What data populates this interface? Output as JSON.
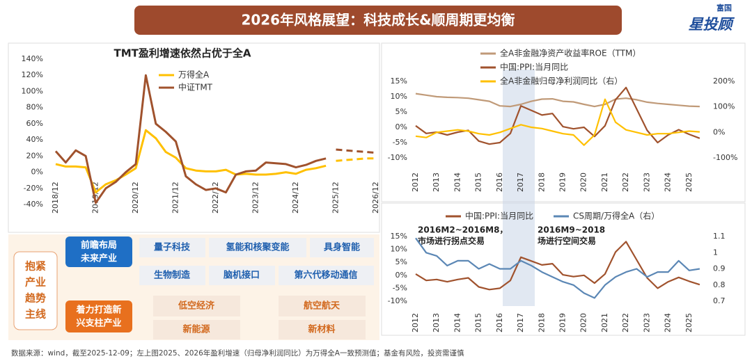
{
  "header": {
    "title": "2026年风格展望：科技成长&顺周期更均衡",
    "logo_top": "富国",
    "logo_main": "星投顾"
  },
  "panel": {
    "theme": [
      "抱紧",
      "产业",
      "趋势",
      "主线"
    ],
    "groups": [
      {
        "label": [
          "前瞻布局",
          "未来产业"
        ],
        "items": [
          "量子科技",
          "氢能和核聚变能",
          "具身智能",
          "生物制造",
          "脑机接口",
          "第六代移动通信"
        ]
      },
      {
        "label": [
          "着力打造新",
          "兴支柱产业"
        ],
        "items": [
          "低空经济",
          "航空航天",
          "新能源",
          "新材料"
        ]
      }
    ]
  },
  "footer": "数据来源：wind，截至2025-12-09；左上图2025、2026年盈利增速（归母净利润同比）为万得全A一致预测值；基金有风险，投资需谨慎",
  "chart_data": [
    {
      "type": "line",
      "title": "TMT盈利增速依然占优于全A",
      "dash_from_index": 28,
      "categories": [
        "2018/12",
        null,
        null,
        null,
        "2019/12",
        null,
        null,
        null,
        "2020/12",
        null,
        null,
        null,
        "2021/12",
        null,
        null,
        null,
        "2022/12",
        null,
        null,
        null,
        "2023/12",
        null,
        null,
        null,
        "2024/12",
        null,
        null,
        null,
        "2025/12",
        null,
        null,
        null,
        "2026/12"
      ],
      "series": [
        {
          "name": "万得全A",
          "color": "#ffc000",
          "values": [
            10,
            7,
            7,
            6,
            -25,
            -15,
            -10,
            -3,
            5,
            52,
            42,
            25,
            18,
            5,
            2,
            1,
            1,
            3,
            -3,
            -2,
            -3,
            -3,
            -2,
            0,
            -2,
            3,
            5,
            8,
            14,
            15,
            16,
            17,
            17
          ]
        },
        {
          "name": "中证TMT",
          "color": "#a0522d",
          "values": [
            26,
            12,
            27,
            20,
            -38,
            -20,
            -12,
            0,
            10,
            120,
            60,
            50,
            38,
            -5,
            -15,
            -22,
            -20,
            -25,
            -3,
            1,
            2,
            12,
            11,
            10,
            6,
            9,
            14,
            17,
            28,
            27,
            26,
            25,
            24
          ]
        }
      ],
      "ylim": [
        -40,
        140
      ],
      "yticks": [
        {
          "value": 140,
          "label": "140%"
        },
        {
          "value": 120,
          "label": "120%"
        },
        {
          "value": 100,
          "label": "100%"
        },
        {
          "value": 80,
          "label": "80%"
        },
        {
          "value": 60,
          "label": "60%"
        },
        {
          "value": 40,
          "label": "40%"
        },
        {
          "value": 20,
          "label": "20%"
        },
        {
          "value": 0,
          "label": "0%"
        },
        {
          "value": -20,
          "label": "-20%"
        },
        {
          "value": -40,
          "label": "-40%"
        }
      ],
      "grid": false
    },
    {
      "type": "line",
      "x": [
        2012,
        2012.5,
        2013,
        2013.5,
        2014,
        2014.5,
        2015,
        2015.5,
        2016,
        2016.5,
        2017,
        2017.5,
        2018,
        2018.5,
        2019,
        2019.5,
        2020,
        2020.5,
        2021,
        2021.5,
        2022,
        2022.5,
        2023,
        2023.5,
        2024,
        2024.5,
        2025,
        2025.5
      ],
      "series": [
        {
          "name": "全A非金融净资产收益率ROE（TTM）",
          "color": "#c09a78",
          "values": [
            11,
            10.5,
            10,
            9.8,
            9.7,
            9.5,
            9,
            8.5,
            7,
            6.8,
            7.5,
            8.5,
            9.2,
            9.3,
            8.5,
            8.3,
            7.5,
            6.8,
            7.5,
            9.2,
            9.5,
            9,
            8.2,
            7.8,
            7.5,
            7.2,
            6.9,
            6.8
          ]
        },
        {
          "name": "中国:PPI:当月同比",
          "color": "#a0522d",
          "values": [
            0.5,
            -2,
            -1.6,
            -2.5,
            -1.6,
            -1,
            -4.5,
            -5.5,
            -5,
            -2,
            7,
            5.5,
            4,
            4.5,
            0.2,
            -0.5,
            0,
            -3,
            0.5,
            9,
            13,
            6,
            -1,
            -5,
            -2.5,
            -0.8,
            -2.3,
            -3.6
          ]
        },
        {
          "name": "全A非金融归母净利润同比（右）",
          "color": "#ffc000",
          "axis": "y2",
          "values": [
            -15,
            -20,
            0,
            5,
            10,
            5,
            -5,
            -10,
            0,
            15,
            30,
            20,
            15,
            5,
            -5,
            -10,
            -50,
            -10,
            130,
            40,
            10,
            0,
            -10,
            -5,
            -5,
            0,
            5,
            2
          ]
        }
      ],
      "xlim": [
        2012,
        2026
      ],
      "xticks": [
        2012,
        2013,
        2014,
        2015,
        2016,
        2017,
        2018,
        2019,
        2020,
        2021,
        2022,
        2023,
        2024,
        2025
      ],
      "ylim": [
        -10,
        15
      ],
      "yticks": [
        {
          "value": 15,
          "label": "15%"
        },
        {
          "value": 10,
          "label": "10%"
        },
        {
          "value": 5,
          "label": "5%"
        },
        {
          "value": 0,
          "label": "0%"
        },
        {
          "value": -5,
          "label": "-5%"
        },
        {
          "value": -10,
          "label": "-10%"
        }
      ],
      "y2lim": [
        -100,
        200
      ],
      "y2ticks": [
        {
          "value": 200,
          "label": "200%"
        },
        {
          "value": 100,
          "label": "100%"
        },
        {
          "value": 0,
          "label": "0%"
        },
        {
          "value": -100,
          "label": "-100%"
        }
      ],
      "grid": false
    },
    {
      "type": "line",
      "annotations": [
        [
          "2016M2~2016M8，",
          "市场进行拐点交易"
        ],
        [
          "2016M9~2018",
          "场进行空间交易"
        ]
      ],
      "x": [
        2012,
        2012.5,
        2013,
        2013.5,
        2014,
        2014.5,
        2015,
        2015.5,
        2016,
        2016.5,
        2017,
        2017.5,
        2018,
        2018.5,
        2019,
        2019.5,
        2020,
        2020.5,
        2021,
        2021.5,
        2022,
        2022.5,
        2023,
        2023.5,
        2024,
        2024.5,
        2025,
        2025.5
      ],
      "series": [
        {
          "name": "中国:PPI:当月同比",
          "color": "#a0522d",
          "values": [
            0.5,
            -2,
            -1.6,
            -2.5,
            -1.6,
            -1,
            -4.5,
            -5.5,
            -5,
            -2,
            7,
            5.5,
            4,
            4.5,
            0.2,
            -0.5,
            0,
            -3,
            0.5,
            9,
            13,
            6,
            -1,
            -5,
            -2.5,
            -0.8,
            -2.3,
            -3.6
          ]
        },
        {
          "name": "CS周期/万得全A（右）",
          "color": "#5b87b5",
          "axis": "y2",
          "values": [
            1.09,
            1.0,
            0.98,
            0.92,
            0.95,
            0.95,
            0.9,
            0.93,
            0.9,
            0.9,
            0.95,
            0.92,
            0.88,
            0.85,
            0.82,
            0.8,
            0.75,
            0.72,
            0.8,
            0.85,
            0.88,
            0.9,
            0.85,
            0.88,
            0.88,
            0.95,
            0.89,
            0.9
          ]
        }
      ],
      "xlim": [
        2012,
        2026
      ],
      "xticks": [
        2012,
        2013,
        2014,
        2015,
        2016,
        2017,
        2018,
        2019,
        2020,
        2021,
        2022,
        2023,
        2024,
        2025
      ],
      "ylim": [
        -10,
        15
      ],
      "yticks": [
        {
          "value": 15,
          "label": "15%"
        },
        {
          "value": 10,
          "label": "10%"
        },
        {
          "value": 5,
          "label": "5%"
        },
        {
          "value": 0,
          "label": "0%"
        },
        {
          "value": -5,
          "label": "-5%"
        },
        {
          "value": -10,
          "label": "-10%"
        }
      ],
      "y2lim": [
        0.7,
        1.1
      ],
      "y2ticks": [
        1.1,
        1,
        0.9,
        0.8,
        0.7
      ],
      "grid": false
    }
  ]
}
